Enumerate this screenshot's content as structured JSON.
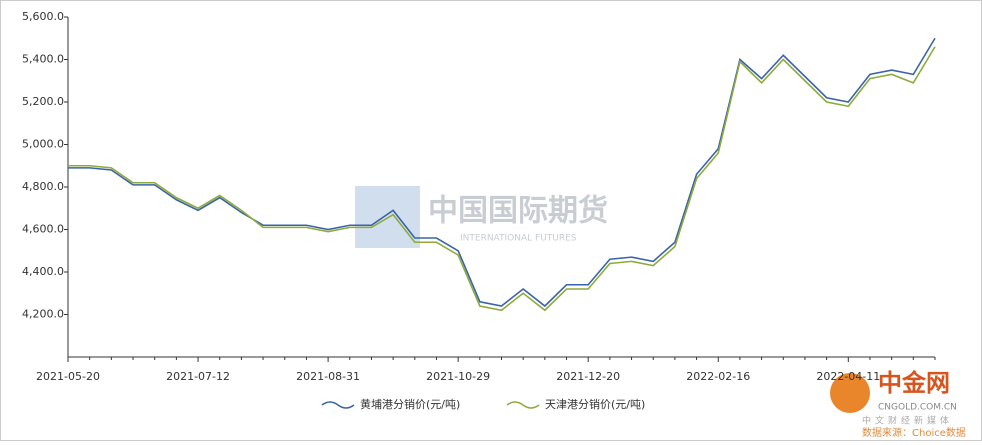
{
  "chart_data": {
    "type": "line",
    "categories": [
      "2021-05-20",
      null,
      null,
      null,
      null,
      null,
      "2021-07-12",
      null,
      null,
      null,
      null,
      null,
      "2021-08-31",
      null,
      null,
      null,
      null,
      null,
      "2021-10-29",
      null,
      null,
      null,
      null,
      null,
      "2021-12-20",
      null,
      null,
      null,
      null,
      null,
      "2022-02-16",
      null,
      null,
      null,
      null,
      null,
      "2022-04-11",
      null,
      null,
      null,
      null
    ],
    "series": [
      {
        "name": "黄埔港分销价(元/吨)",
        "color": "#3a64a8",
        "values": [
          4890,
          4890,
          4880,
          4810,
          4810,
          4740,
          4690,
          4750,
          4680,
          4620,
          4620,
          4620,
          4600,
          4620,
          4620,
          4690,
          4560,
          4560,
          4500,
          4260,
          4240,
          4320,
          4240,
          4340,
          4340,
          4460,
          4470,
          4450,
          4540,
          4860,
          4980,
          5400,
          5310,
          5420,
          5320,
          5220,
          5200,
          5330,
          5350,
          5330,
          5500
        ]
      },
      {
        "name": "天津港分销价(元/吨)",
        "color": "#8faa3c",
        "values": [
          4900,
          4900,
          4890,
          4820,
          4820,
          4750,
          4700,
          4760,
          4690,
          4610,
          4610,
          4610,
          4590,
          4610,
          4610,
          4670,
          4540,
          4540,
          4480,
          4240,
          4220,
          4300,
          4220,
          4320,
          4320,
          4440,
          4450,
          4430,
          4520,
          4840,
          4960,
          5390,
          5290,
          5400,
          5300,
          5200,
          5180,
          5310,
          5330,
          5290,
          5460
        ]
      }
    ],
    "ylim": [
      4000,
      5600
    ],
    "yticks": [
      {
        "value": 4200,
        "label": "4,200.0"
      },
      {
        "value": 4400,
        "label": "4,400.0"
      },
      {
        "value": 4600,
        "label": "4,600.0"
      },
      {
        "value": 4800,
        "label": "4,800.0"
      },
      {
        "value": 5000,
        "label": "5,000.0"
      },
      {
        "value": 5200,
        "label": "5,200.0"
      },
      {
        "value": 5400,
        "label": "5,400.0"
      },
      {
        "value": 5600,
        "label": "5,600.0"
      }
    ],
    "watermark": "中国国际期货",
    "watermark_sub": "INTERNATIONAL FUTURES",
    "logo": "中金网",
    "logo_url": "CNGOLD.COM.CN",
    "logo_slogan": "中文财经新媒体",
    "source": "数据来源：Choice数据"
  }
}
